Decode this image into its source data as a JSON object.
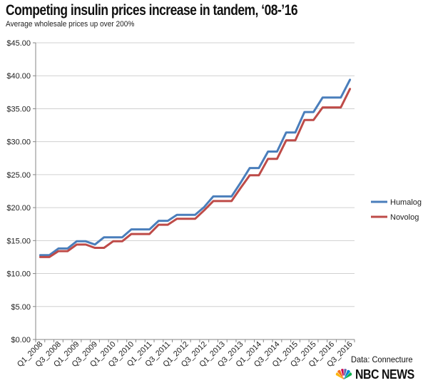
{
  "header": {
    "title": "Competing insulin prices increase in tandem, ‘08-’16",
    "subtitle": "Average wholesale prices up over 200%"
  },
  "footer": {
    "source": "Data: Connecture",
    "brand": "NBC NEWS"
  },
  "colors": {
    "humalog": "#4a7ebb",
    "novolog": "#be4b48",
    "axis": "#868686",
    "grid": "#d0d0d0"
  },
  "chart_data": {
    "type": "line",
    "title": "Competing insulin prices increase in tandem, ‘08-’16",
    "subtitle": "Average wholesale prices up over 200%",
    "xlabel": "",
    "ylabel": "",
    "ylim": [
      0,
      45
    ],
    "yticks": [
      "$0.00",
      "$5.00",
      "$10.00",
      "$15.00",
      "$20.00",
      "$25.00",
      "$30.00",
      "$35.00",
      "$40.00",
      "$45.00"
    ],
    "ytick_values": [
      0,
      5,
      10,
      15,
      20,
      25,
      30,
      35,
      40,
      45
    ],
    "grid": true,
    "legend": "right",
    "x_tick_labels": [
      "Q1_2008",
      "Q3_2008",
      "Q1_2009",
      "Q3_2009",
      "Q1_2010",
      "Q3_2010",
      "Q1_2011",
      "Q3_2011",
      "Q1_2012",
      "Q3_2012",
      "Q1_2013",
      "Q3_2013",
      "Q1_2014",
      "Q3_2014",
      "Q1_2015",
      "Q3_2015",
      "Q1_2016",
      "Q3_2016"
    ],
    "series": [
      {
        "name": "Humalog",
        "values": [
          12.8,
          12.8,
          13.8,
          13.8,
          14.9,
          14.9,
          14.4,
          15.5,
          15.5,
          15.5,
          16.7,
          16.7,
          16.7,
          18.0,
          18.0,
          18.9,
          18.9,
          18.9,
          20.1,
          21.7,
          21.7,
          21.7,
          23.8,
          26.0,
          26.0,
          28.5,
          28.5,
          31.4,
          31.4,
          34.5,
          34.5,
          36.7,
          36.7,
          36.7,
          39.4
        ]
      },
      {
        "name": "Novolog",
        "values": [
          12.5,
          12.5,
          13.4,
          13.4,
          14.4,
          14.4,
          13.9,
          13.9,
          14.9,
          14.9,
          16.0,
          16.0,
          16.0,
          17.4,
          17.4,
          18.3,
          18.3,
          18.3,
          19.6,
          21.0,
          21.0,
          21.0,
          23.0,
          24.9,
          24.9,
          27.4,
          27.4,
          30.2,
          30.2,
          33.3,
          33.3,
          35.2,
          35.2,
          35.2,
          38.0
        ]
      }
    ]
  }
}
